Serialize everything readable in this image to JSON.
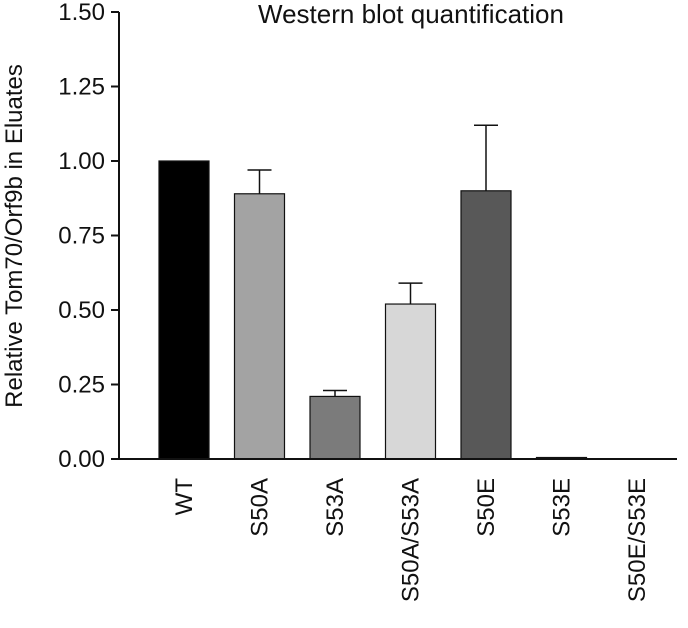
{
  "chart_data": {
    "type": "bar",
    "title": "Western blot quantification",
    "xlabel": "",
    "ylabel": "Relative Tom70/Orf9b in Eluates",
    "ylim": [
      0,
      1.5
    ],
    "yticks": [
      "0.00",
      "0.25",
      "0.50",
      "0.75",
      "1.00",
      "1.25",
      "1.50"
    ],
    "grid": false,
    "legend": "none",
    "categories": [
      "WT",
      "S50A",
      "S53A",
      "S50A/S53A",
      "S50E",
      "S53E",
      "S50E/S53E"
    ],
    "values": [
      1.0,
      0.89,
      0.21,
      0.52,
      0.9,
      0.005,
      0.0
    ],
    "errors": [
      0.0,
      0.08,
      0.02,
      0.07,
      0.22,
      0.0,
      0.0
    ],
    "colors": [
      "#000000",
      "#a3a3a3",
      "#7b7b7b",
      "#d7d7d7",
      "#585858",
      "#444444",
      "#444444"
    ]
  }
}
